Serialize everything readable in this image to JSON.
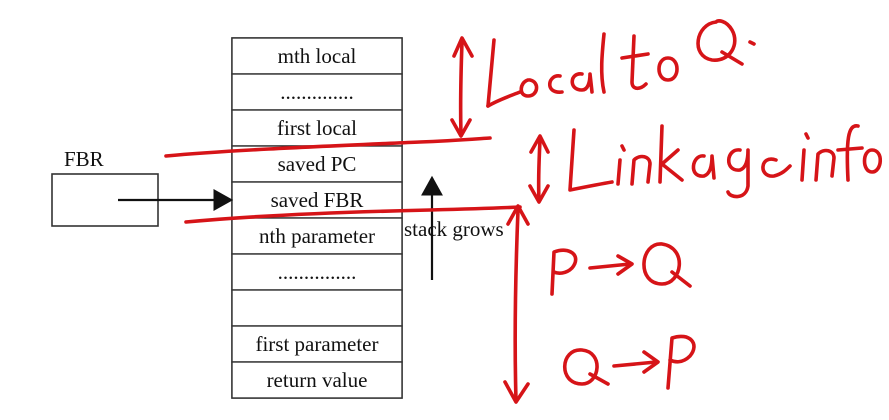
{
  "stack_frame": {
    "cells": [
      "mth local",
      "..............",
      "first local",
      "saved PC",
      "saved FBR",
      "nth parameter",
      "...............",
      "",
      "first parameter",
      "return value"
    ],
    "stack_grows_label": "stack grows"
  },
  "fbr_register": {
    "label": "FBR"
  },
  "colors": {
    "ink": "#d61418",
    "print": "#111111",
    "border": "#333333"
  }
}
